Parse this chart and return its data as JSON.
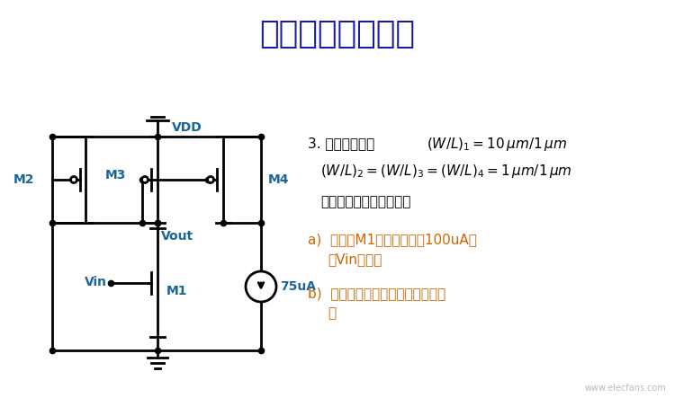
{
  "title": "期中考試題目講解",
  "title_color": "#1a1aaa",
  "title_fontsize": 26,
  "bg_color": "#ffffff",
  "circuit_color": "#000000",
  "label_color": "#1a6699",
  "text_color": "#000000",
  "orange_color": "#cc6600",
  "vdd_label": "VDD",
  "vout_label": "Vout",
  "vin_label": "Vin",
  "m1_label": "M1",
  "m2_label": "M2",
  "m3_label": "M3",
  "m4_label": "M4",
  "current_label": "75uA",
  "watermark": "www.elecfans.com"
}
